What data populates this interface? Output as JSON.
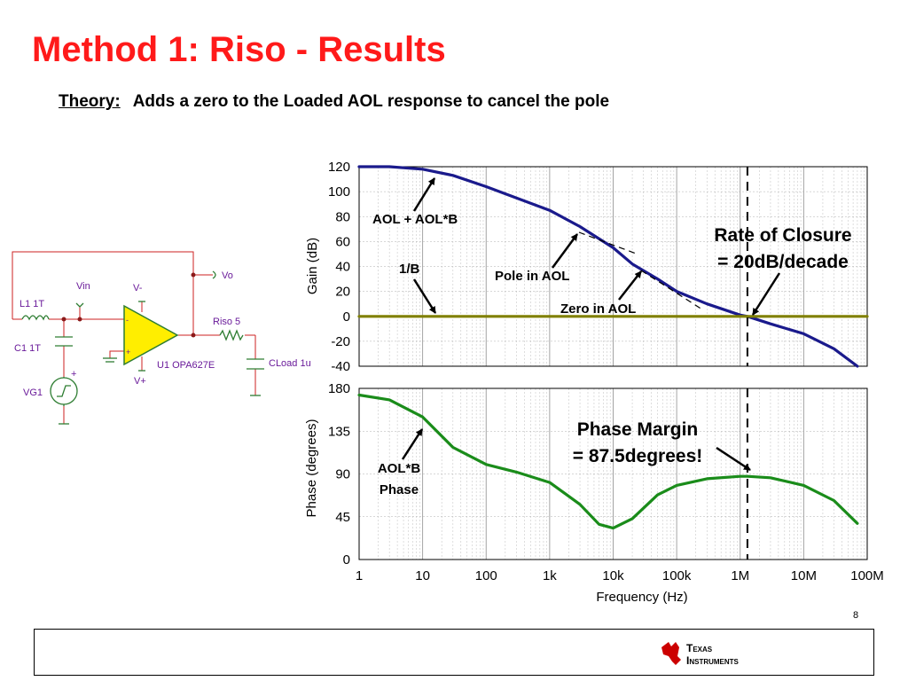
{
  "slide": {
    "title": "Method 1:  Riso - Results",
    "subtitle_label": "Theory:",
    "subtitle_text": "Adds a zero to the Loaded AOL response to cancel the pole",
    "page_number": "8",
    "logo_line1": "Texas",
    "logo_line2": "Instruments"
  },
  "schematic": {
    "labels": {
      "vin": "Vin",
      "vminus": "V-",
      "vplus": "V+",
      "vo": "Vo",
      "l1": "L1 1T",
      "c1": "C1 1T",
      "vg1": "VG1",
      "riso": "Riso 5",
      "u1": "U1 OPA627E",
      "cload": "CLoad 1u",
      "minus": "-",
      "plus": "+"
    },
    "colors": {
      "labels": "#6a1b9a",
      "wires": "#cc2222",
      "component": "#2e7d32",
      "opamp_fill": "#ffee00"
    }
  },
  "chart_data": [
    {
      "type": "line",
      "title": "",
      "xlabel": "",
      "ylabel": "Gain (dB)",
      "xscale": "log",
      "xlim": [
        1,
        100000000
      ],
      "ylim": [
        -40,
        120
      ],
      "yticks": [
        "120",
        "100",
        "80",
        "60",
        "40",
        "20",
        "0",
        "-20",
        "-40"
      ],
      "grid": true,
      "series": [
        {
          "color": "#1a1a8c",
          "x": [
            1,
            3,
            10,
            30,
            100,
            300,
            1000,
            3000,
            10000,
            20000,
            50000,
            100000,
            300000,
            1000000,
            1300000,
            3000000,
            10000000,
            30000000,
            70000000
          ],
          "y": [
            120,
            120,
            118,
            113,
            104,
            95,
            85,
            72,
            55,
            42,
            30,
            20,
            10,
            1,
            0,
            -6,
            -14,
            -26,
            -40
          ]
        },
        {
          "color": "#808000",
          "x": [
            1,
            100000000
          ],
          "y": [
            0,
            0
          ]
        }
      ],
      "vline_x": 1300000,
      "annotations": {
        "aol_aolb": "AOL + AOL*B",
        "one_over_b": "1/B",
        "pole": "Pole in AOL",
        "zero": "Zero in AOL",
        "roc_line1": "Rate of Closure",
        "roc_line2": "= 20dB/decade"
      }
    },
    {
      "type": "line",
      "title": "",
      "xlabel": "Frequency (Hz)",
      "ylabel": "Phase (degrees)",
      "xscale": "log",
      "xlim": [
        1,
        100000000
      ],
      "ylim": [
        0,
        180
      ],
      "yticks": [
        "180",
        "135",
        "90",
        "45",
        "0"
      ],
      "xticks": [
        "1",
        "10",
        "100",
        "1k",
        "10k",
        "100k",
        "1M",
        "10M",
        "100M"
      ],
      "grid": true,
      "series": [
        {
          "color": "#1a8c1a",
          "x": [
            1,
            3,
            10,
            30,
            100,
            300,
            1000,
            3000,
            6000,
            10000,
            20000,
            50000,
            100000,
            300000,
            1000000,
            1300000,
            3000000,
            10000000,
            30000000,
            70000000
          ],
          "y": [
            173,
            168,
            150,
            118,
            100,
            92,
            81,
            58,
            37,
            33,
            43,
            68,
            78,
            85,
            87.5,
            87.5,
            86,
            78,
            62,
            38
          ]
        }
      ],
      "vline_x": 1300000,
      "annotations": {
        "aolb_line1": "AOL*B",
        "aolb_line2": "Phase",
        "pm_line1": "Phase Margin",
        "pm_line2": "= 87.5degrees!"
      }
    }
  ]
}
